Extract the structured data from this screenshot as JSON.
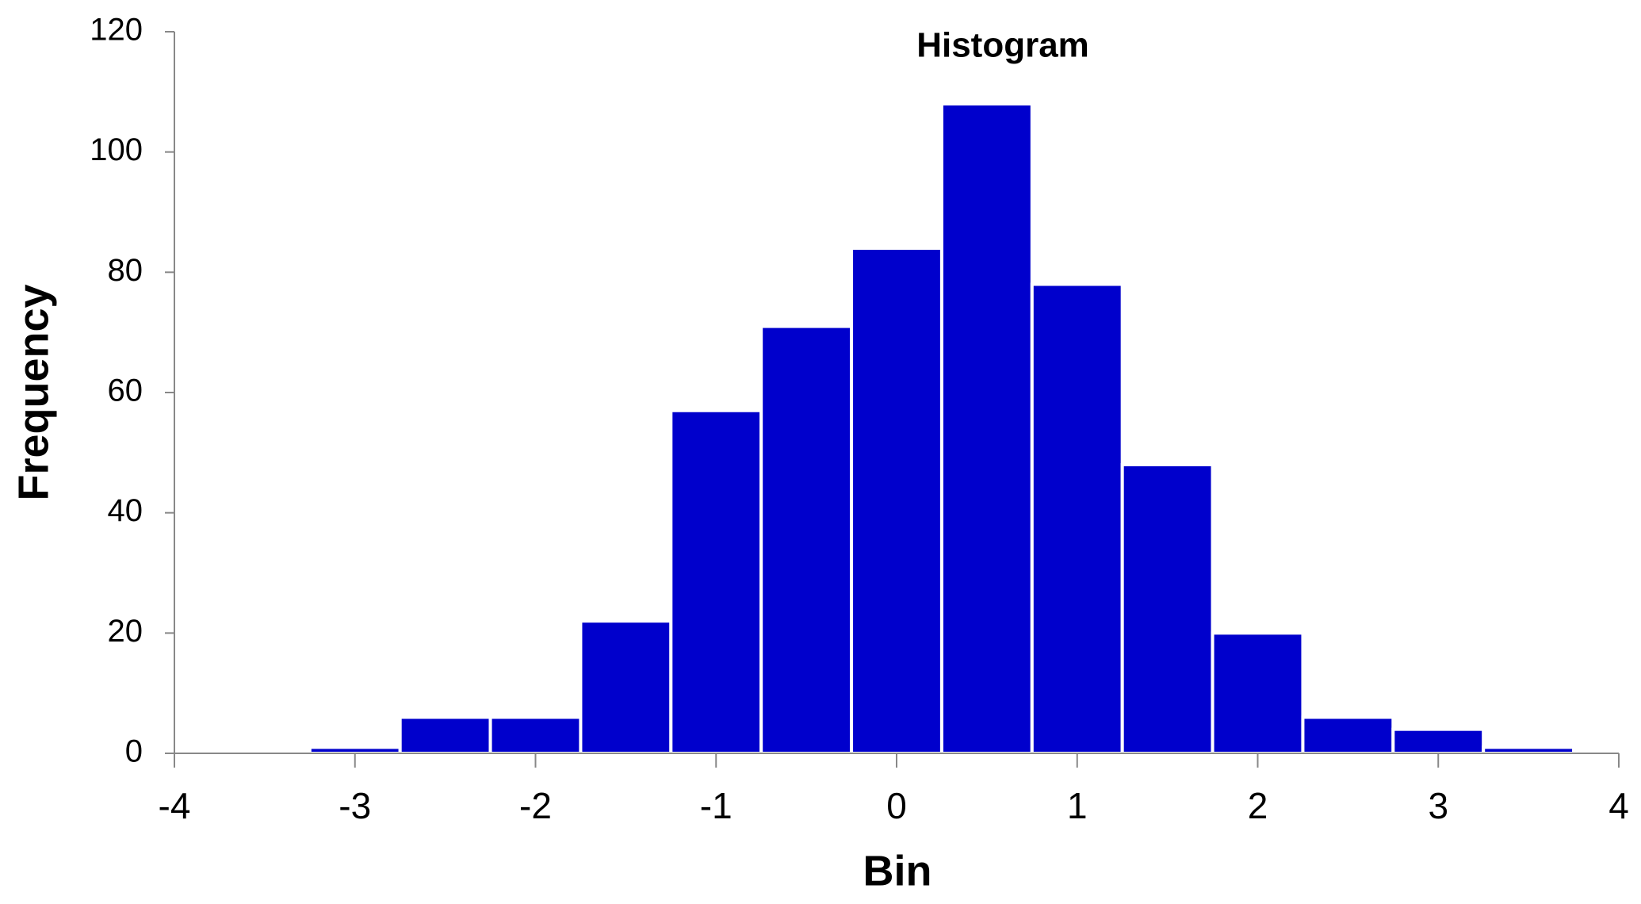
{
  "chart_data": {
    "type": "histogram",
    "title": "Histogram",
    "x_label": "Bin",
    "y_label": "Frequency",
    "bins": [
      -3.25,
      -2.75,
      -2.25,
      -1.75,
      -1.25,
      -0.75,
      -0.25,
      0.25,
      0.75,
      1.25,
      1.75,
      2.25,
      2.75,
      3.25,
      3.75
    ],
    "values": [
      1,
      6,
      6,
      22,
      57,
      71,
      84,
      108,
      78,
      48,
      20,
      6,
      4,
      1
    ],
    "color": "#0000cc",
    "xlim": [
      -4,
      4
    ],
    "xticks": [
      -4,
      -3,
      -2,
      -1,
      0,
      1,
      2,
      3,
      4
    ],
    "ylim": [
      0,
      120
    ],
    "yticks": [
      0,
      20,
      40,
      60,
      80,
      100,
      120
    ]
  }
}
